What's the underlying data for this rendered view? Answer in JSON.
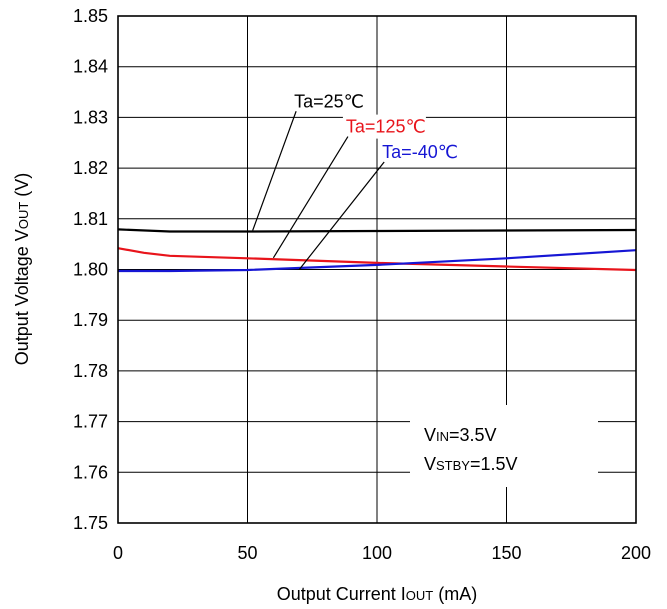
{
  "chart_data": {
    "type": "line",
    "xlabel": {
      "main": "Output Current I",
      "sub": "OUT",
      "unit": " (mA)"
    },
    "ylabel": {
      "main": "Output Voltage V",
      "sub": "OUT",
      "unit": " (V)"
    },
    "xlim": [
      0,
      200
    ],
    "ylim": [
      1.75,
      1.85
    ],
    "x_ticks": [
      "0",
      "50",
      "100",
      "150",
      "200"
    ],
    "y_ticks": [
      "1.75",
      "1.76",
      "1.77",
      "1.78",
      "1.79",
      "1.80",
      "1.81",
      "1.82",
      "1.83",
      "1.84",
      "1.85"
    ],
    "x_tick_values": [
      0,
      50,
      100,
      150,
      200
    ],
    "y_tick_values": [
      1.75,
      1.76,
      1.77,
      1.78,
      1.79,
      1.8,
      1.81,
      1.82,
      1.83,
      1.84,
      1.85
    ],
    "grid": true,
    "series": [
      {
        "name": "Ta=25℃",
        "color": "#000000",
        "x": [
          0,
          20,
          50,
          100,
          150,
          200
        ],
        "y": [
          1.8079,
          1.8075,
          1.8075,
          1.8076,
          1.8077,
          1.8078
        ],
        "label_anchor": [
          68,
          1.832
        ],
        "pointer_to": [
          52,
          1.8077
        ]
      },
      {
        "name": "Ta=125℃",
        "color": "#e8141b",
        "x": [
          0,
          10,
          20,
          50,
          100,
          150,
          200
        ],
        "y": [
          1.8042,
          1.8033,
          1.8027,
          1.8022,
          1.8013,
          1.8006,
          1.7999
        ],
        "label_anchor": [
          88,
          1.827
        ],
        "pointer_to": [
          60,
          1.8023
        ]
      },
      {
        "name": "Ta=-40℃",
        "color": "#1616d4",
        "x": [
          0,
          20,
          50,
          100,
          150,
          200
        ],
        "y": [
          1.7997,
          1.7997,
          1.7999,
          1.8009,
          1.8022,
          1.8038
        ],
        "label_anchor": [
          102,
          1.822
        ],
        "pointer_to": [
          70,
          1.8
        ]
      }
    ],
    "annotation": {
      "lines": [
        {
          "main": "V",
          "sub": "IN",
          "rest": "=3.5V"
        },
        {
          "main": "V",
          "sub": "STBY",
          "rest": "=1.5V"
        }
      ]
    }
  }
}
